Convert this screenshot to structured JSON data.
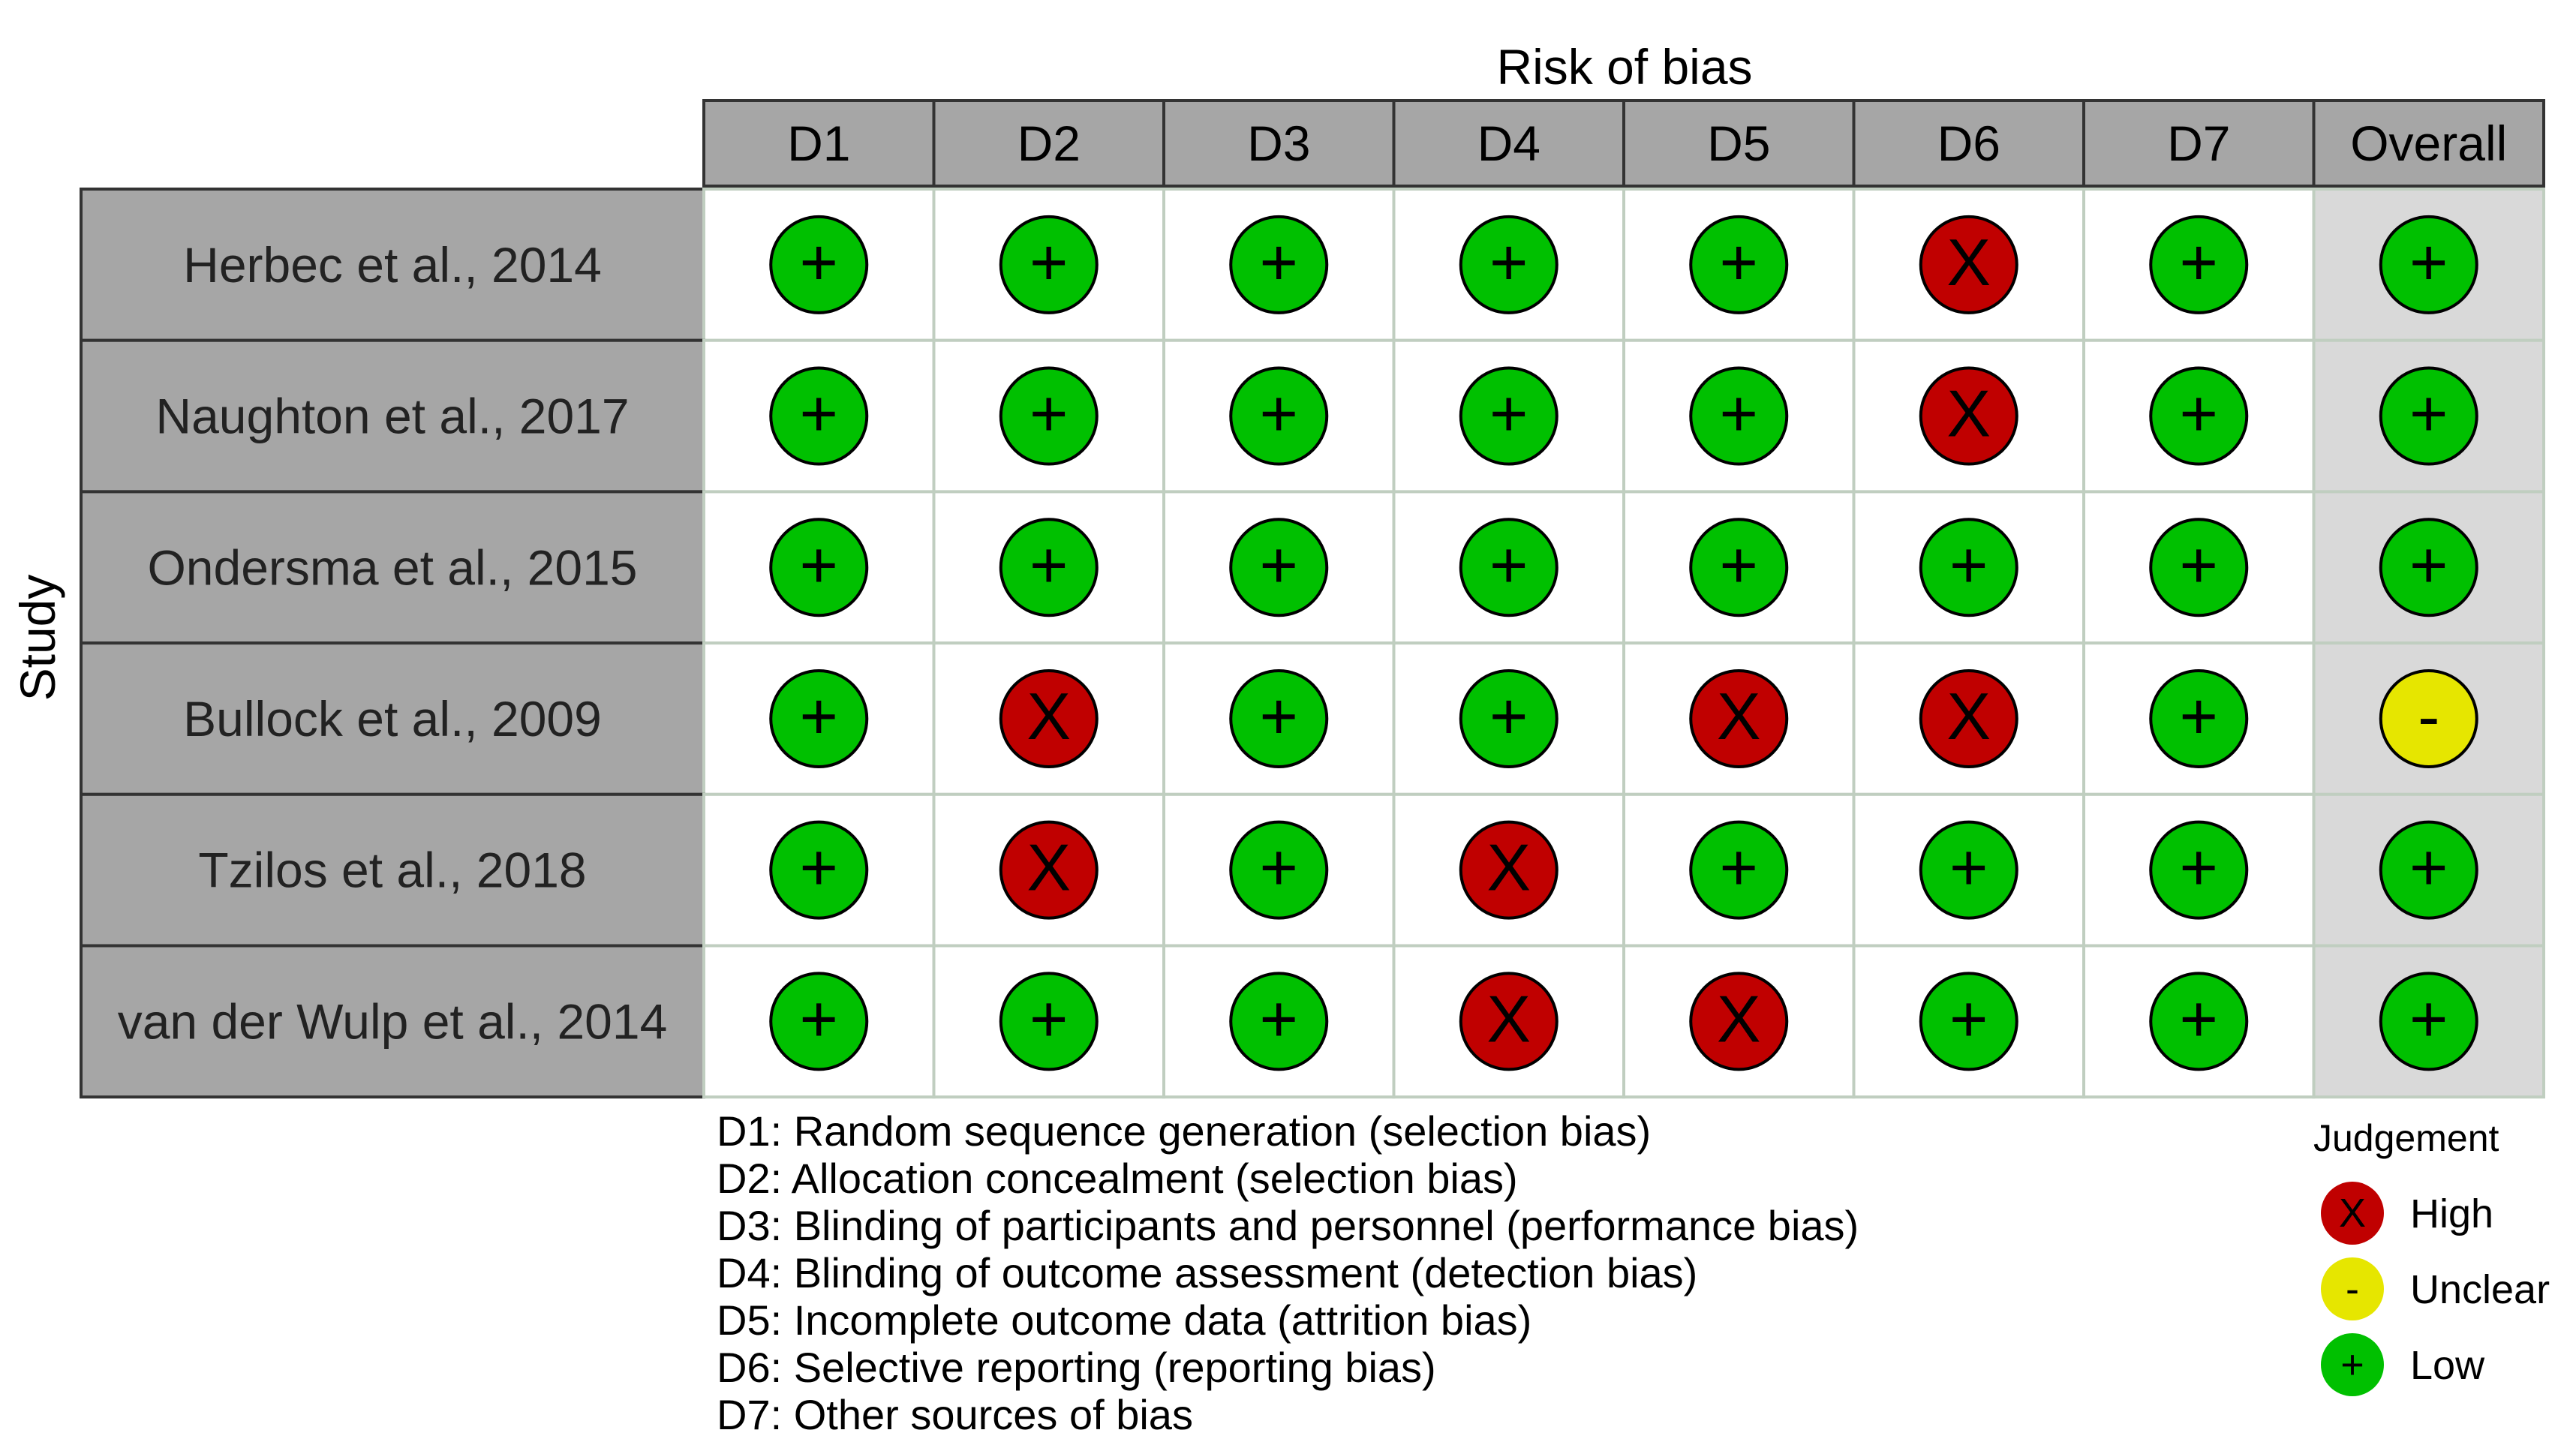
{
  "chart_data": {
    "type": "table",
    "title": "Risk of bias",
    "row_axis_label": "Study",
    "domains": [
      "D1",
      "D2",
      "D3",
      "D4",
      "D5",
      "D6",
      "D7",
      "Overall"
    ],
    "studies": [
      {
        "name": "Herbec et al., 2014",
        "judgements": [
          "low",
          "low",
          "low",
          "low",
          "low",
          "high",
          "low",
          "low"
        ]
      },
      {
        "name": "Naughton et al., 2017",
        "judgements": [
          "low",
          "low",
          "low",
          "low",
          "low",
          "high",
          "low",
          "low"
        ]
      },
      {
        "name": "Ondersma et al., 2015",
        "judgements": [
          "low",
          "low",
          "low",
          "low",
          "low",
          "low",
          "low",
          "low"
        ]
      },
      {
        "name": "Bullock et al., 2009",
        "judgements": [
          "low",
          "high",
          "low",
          "low",
          "high",
          "high",
          "low",
          "unclear"
        ]
      },
      {
        "name": "Tzilos et al., 2018",
        "judgements": [
          "low",
          "high",
          "low",
          "high",
          "low",
          "low",
          "low",
          "low"
        ]
      },
      {
        "name": "van der Wulp et al., 2014",
        "judgements": [
          "low",
          "low",
          "low",
          "high",
          "high",
          "low",
          "low",
          "low"
        ]
      }
    ],
    "domain_descriptions": [
      "D1: Random sequence generation (selection bias)",
      "D2: Allocation concealment (selection bias)",
      "D3: Blinding of participants and personnel (performance bias)",
      "D4: Blinding of outcome assessment (detection bias)",
      "D5: Incomplete outcome data (attrition bias)",
      "D6: Selective reporting (reporting bias)",
      "D7: Other sources of bias"
    ],
    "legend": {
      "title": "Judgement",
      "position": "bottom-right",
      "items": [
        {
          "key": "high",
          "label": "High",
          "symbol": "X"
        },
        {
          "key": "unclear",
          "label": "Unclear",
          "symbol": "-"
        },
        {
          "key": "low",
          "label": "Low",
          "symbol": "+"
        }
      ]
    },
    "colors": {
      "high": "#c00000",
      "unclear": "#e6e600",
      "low": "#00c000",
      "header_fill": "#a6a6a6",
      "study_fill": "#a6a6a6",
      "overall_fill": "#d9d9d9",
      "cell_fill": "#ffffff",
      "cell_border": "#c0cec0"
    }
  }
}
